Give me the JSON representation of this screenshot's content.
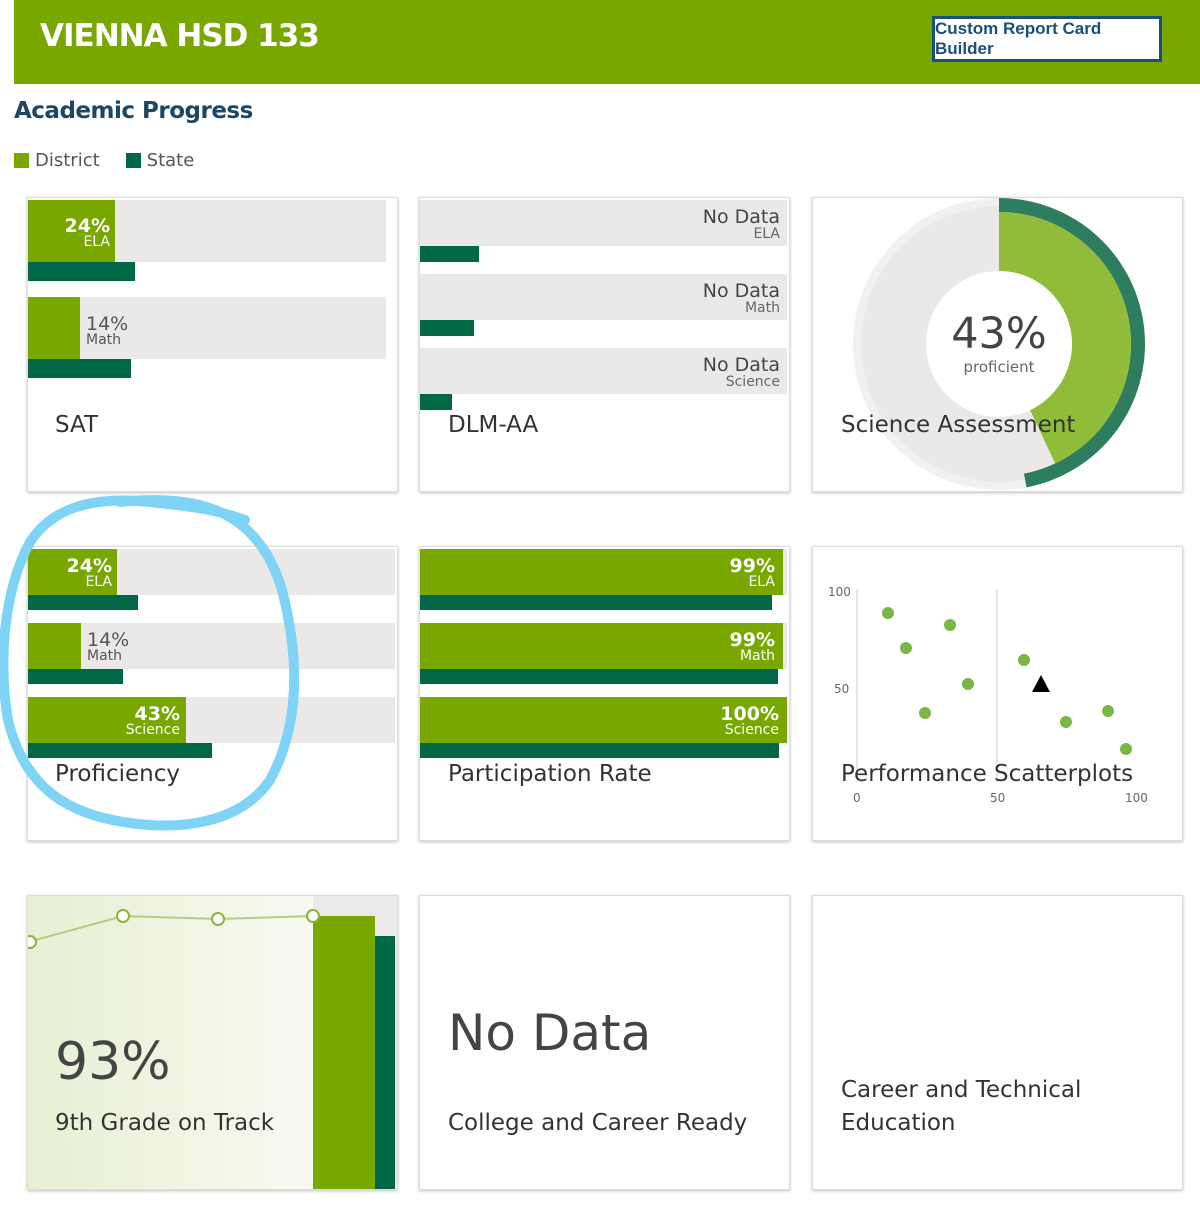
{
  "header": {
    "title": "VIENNA HSD 133",
    "button_label": "Custom Report Card Builder"
  },
  "section": {
    "title": "Academic Progress"
  },
  "legend": [
    {
      "label": "District",
      "color": "#78a800"
    },
    {
      "label": "State",
      "color": "#006747"
    }
  ],
  "colors": {
    "district": "#78a800",
    "state": "#006747",
    "track": "#ebe8e8"
  },
  "cards": {
    "sat": {
      "title": "SAT",
      "rows": [
        {
          "pct": "24%",
          "sub": "ELA",
          "district": 24,
          "state": 29
        },
        {
          "pct": "14%",
          "sub": "Math",
          "district": 14,
          "state": 28
        }
      ]
    },
    "dlm": {
      "title": "DLM-AA",
      "rows": [
        {
          "pct": "No Data",
          "sub": "ELA"
        },
        {
          "pct": "No Data",
          "sub": "Math"
        },
        {
          "pct": "No Data",
          "sub": "Science"
        }
      ]
    },
    "science": {
      "title": "Science Assessment",
      "pct": "43%",
      "sub": "proficient",
      "value": 43
    },
    "proficiency": {
      "title": "Proficiency",
      "rows": [
        {
          "pct": "24%",
          "sub": "ELA",
          "district": 24,
          "state": 30
        },
        {
          "pct": "14%",
          "sub": "Math",
          "district": 14,
          "state": 26
        },
        {
          "pct": "43%",
          "sub": "Science",
          "district": 43,
          "state": 50
        }
      ]
    },
    "participation": {
      "title": "Participation Rate",
      "rows": [
        {
          "pct": "99%",
          "sub": "ELA",
          "district": 99,
          "state": 96
        },
        {
          "pct": "99%",
          "sub": "Math",
          "district": 99,
          "state": 96
        },
        {
          "pct": "100%",
          "sub": "Science",
          "district": 100,
          "state": 96
        }
      ]
    },
    "scatter": {
      "title": "Performance Scatterplots",
      "x_ticks": [
        "0",
        "50",
        "100"
      ],
      "y_ticks": [
        "100",
        "50"
      ]
    },
    "track": {
      "pct": "93%",
      "title": "9th Grade on Track"
    },
    "ccr": {
      "nodata": "No Data",
      "title": "College and Career Ready"
    },
    "cte": {
      "title_line1": "Career and Technical",
      "title_line2": "Education"
    }
  }
}
